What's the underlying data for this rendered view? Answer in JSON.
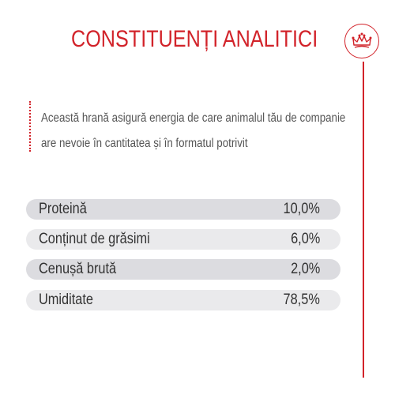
{
  "header": {
    "title": "CONSTITUENȚI ANALITICI",
    "logo_icon": "crown-icon"
  },
  "description": {
    "line1": "Această hrană asigură energia de care animalul tău de companie",
    "line2": "are nevoie în cantitatea și în formatul potrivit"
  },
  "constituents": [
    {
      "label": "Proteină",
      "value": "10,0%"
    },
    {
      "label": "Conținut de grăsimi",
      "value": "6,0%"
    },
    {
      "label": "Cenușă brută",
      "value": "2,0%"
    },
    {
      "label": "Umiditate",
      "value": "78,5%"
    }
  ],
  "colors": {
    "accent": "#d2232a",
    "row_dark": "#dcdce0",
    "row_light": "#eaeaec",
    "text": "#333333"
  }
}
